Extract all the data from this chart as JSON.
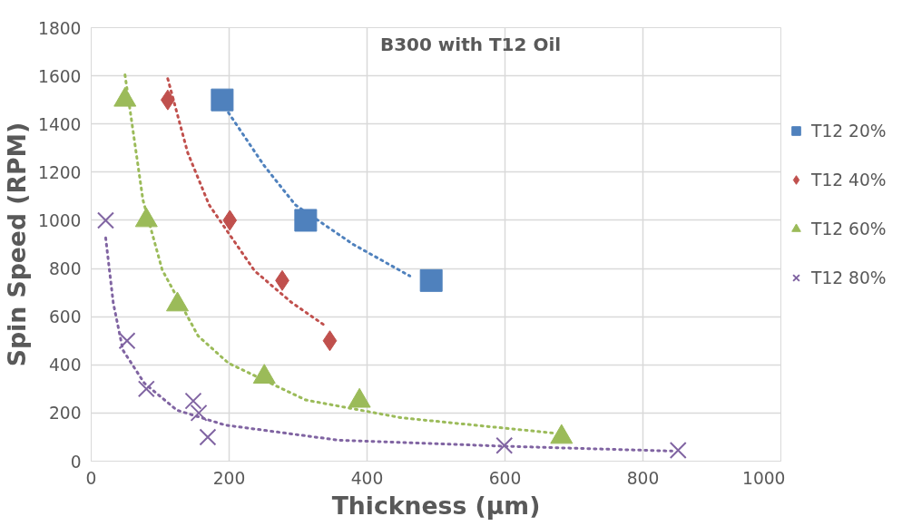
{
  "chart_data": {
    "type": "scatter",
    "title": "B300 with T12 Oil",
    "xlabel": "Thickness (µm)",
    "ylabel": "Spin Speed (RPM)",
    "xlim": [
      0,
      1000
    ],
    "ylim": [
      0,
      1800
    ],
    "xticks": [
      0,
      200,
      400,
      600,
      800,
      1000
    ],
    "yticks": [
      0,
      200,
      400,
      600,
      800,
      1000,
      1200,
      1400,
      1600,
      1800
    ],
    "grid": true,
    "legend": "right",
    "series": [
      {
        "name": "T12 20%",
        "color": "#4f81bd",
        "marker": "square",
        "x": [
          190,
          311,
          493
        ],
        "values": [
          1500,
          1000,
          750
        ]
      },
      {
        "name": "T12 40%",
        "color": "#c0504d",
        "marker": "diamond",
        "x": [
          111,
          201,
          277,
          346
        ],
        "values": [
          1500,
          1000,
          750,
          500
        ]
      },
      {
        "name": "T12 60%",
        "color": "#9bbb59",
        "marker": "triangle",
        "x": [
          49,
          80,
          125,
          251,
          389,
          682
        ],
        "values": [
          1500,
          1000,
          650,
          350,
          250,
          100
        ]
      },
      {
        "name": "T12 80%",
        "color": "#8064a2",
        "marker": "cross",
        "x": [
          21,
          52,
          80,
          148,
          156,
          169,
          599,
          851
        ],
        "values": [
          1000,
          500,
          300,
          250,
          200,
          100,
          65,
          45
        ]
      },
      {
        "type": "line",
        "color": "#4f81bd",
        "line_style": "dotted",
        "x": [
          199,
          250,
          296,
          380,
          462
        ],
        "values": [
          1447,
          1230,
          1064,
          900,
          769
        ]
      },
      {
        "type": "line",
        "color": "#c0504d",
        "line_style": "dotted",
        "x": [
          111,
          140,
          171,
          237,
          290,
          340
        ],
        "values": [
          1588,
          1280,
          1064,
          790,
          660,
          561
        ]
      },
      {
        "type": "line",
        "color": "#9bbb59",
        "line_style": "dotted",
        "x": [
          49,
          75,
          103,
          155,
          199,
          311,
          450,
          673
        ],
        "values": [
          1604,
          1085,
          794,
          520,
          407,
          254,
          180,
          116
        ]
      },
      {
        "type": "line",
        "color": "#8064a2",
        "line_style": "dotted",
        "x": [
          21,
          32,
          46,
          77,
          124,
          194,
          359,
          599,
          842
        ],
        "values": [
          927,
          657,
          461,
          324,
          212,
          150,
          87,
          62,
          42
        ]
      }
    ]
  }
}
